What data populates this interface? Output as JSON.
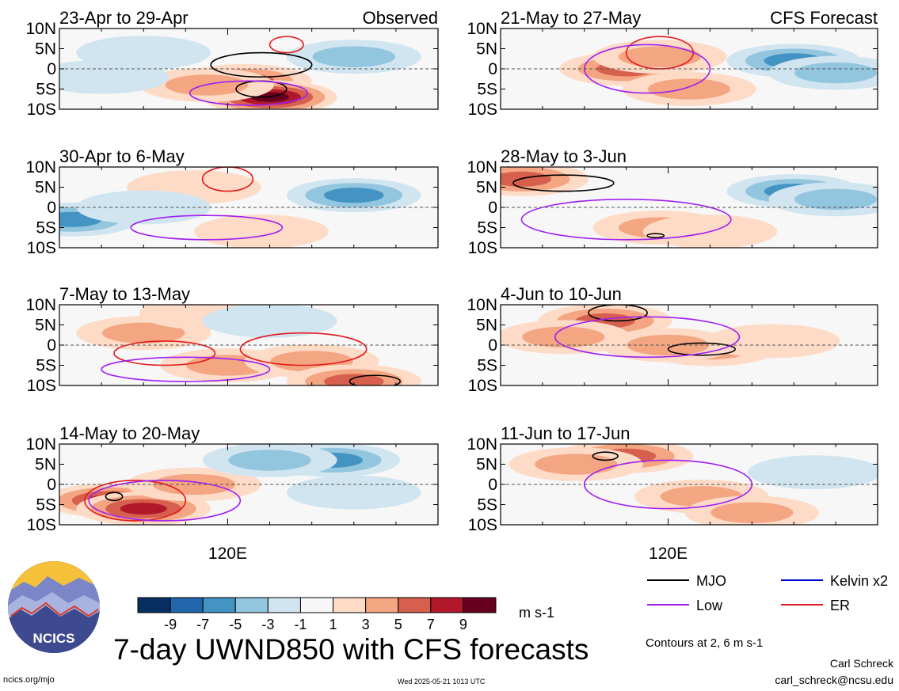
{
  "title": "7-day UWND850 with CFS forecasts",
  "logo_text": "NCICS",
  "footer": {
    "left": "ncics.org/mjo",
    "center": "Wed 2025-05-21 1013 UTC",
    "author": "Carl Schreck",
    "email": "carl_schreck@ncsu.edu"
  },
  "contours_note": "Contours at 2, 6 m s-1",
  "colorbar": {
    "unit": "m s-1",
    "tick_labels": [
      "-9",
      "-7",
      "-5",
      "-3",
      "-1",
      "1",
      "3",
      "5",
      "7",
      "9"
    ],
    "colors": [
      "#053061",
      "#2166ac",
      "#4393c3",
      "#92c5de",
      "#d1e5f0",
      "#f7f7f7",
      "#fddbc7",
      "#f4a582",
      "#d6604d",
      "#b2182b",
      "#67001f"
    ]
  },
  "legend": [
    {
      "label": "MJO",
      "color": "#000000"
    },
    {
      "label": "Kelvin x2",
      "color": "#0000cc"
    },
    {
      "label": "Low",
      "color": "#a020f0"
    },
    {
      "label": "ER",
      "color": "#e41a1c"
    }
  ],
  "colors": {
    "land": "#808080",
    "equator": "#555555"
  },
  "chart_data": {
    "type": "heatmap",
    "variable": "UWND850",
    "lat_tick_labels": [
      "10N",
      "5N",
      "0",
      "5S",
      "10S"
    ],
    "x_tick_label": "120E",
    "panels": [
      {
        "column": "left",
        "period": "23-Apr to 29-Apr",
        "tag": "Observed",
        "blobs": [
          {
            "lon": 124,
            "lat": -3,
            "v": 6
          },
          {
            "lon": 130,
            "lat": -7,
            "v": 9
          },
          {
            "lon": 115,
            "lat": -4,
            "v": 3
          },
          {
            "lon": 150,
            "lat": 3,
            "v": -3
          },
          {
            "lon": 100,
            "lat": 4,
            "v": -2
          },
          {
            "lon": 90,
            "lat": -2,
            "v": -1
          }
        ],
        "contours": [
          {
            "type": "MJO",
            "lon": 128,
            "lat": 1,
            "rx": 12,
            "ry": 3
          },
          {
            "type": "MJO",
            "lon": 128,
            "lat": -5,
            "rx": 6,
            "ry": 2
          },
          {
            "type": "ER",
            "lon": 134,
            "lat": 6,
            "rx": 4,
            "ry": 2
          },
          {
            "type": "Low",
            "lon": 125,
            "lat": -6,
            "rx": 14,
            "ry": 3
          }
        ]
      },
      {
        "column": "left",
        "period": "30-Apr to 6-May",
        "blobs": [
          {
            "lon": 83,
            "lat": -3,
            "v": -5
          },
          {
            "lon": 150,
            "lat": 3,
            "v": -5
          },
          {
            "lon": 112,
            "lat": 5,
            "v": 2
          },
          {
            "lon": 128,
            "lat": -6,
            "v": 2
          },
          {
            "lon": 100,
            "lat": 0,
            "v": -2
          }
        ],
        "contours": [
          {
            "type": "ER",
            "lon": 120,
            "lat": 7,
            "rx": 6,
            "ry": 3
          },
          {
            "type": "Low",
            "lon": 115,
            "lat": -5,
            "rx": 18,
            "ry": 3
          }
        ]
      },
      {
        "column": "left",
        "period": "7-May to 13-May",
        "blobs": [
          {
            "lon": 100,
            "lat": 3,
            "v": 3
          },
          {
            "lon": 120,
            "lat": -5,
            "v": 3
          },
          {
            "lon": 140,
            "lat": -4,
            "v": 3
          },
          {
            "lon": 115,
            "lat": 8,
            "v": 2
          },
          {
            "lon": 150,
            "lat": -9,
            "v": 5
          },
          {
            "lon": 130,
            "lat": 6,
            "v": -1
          }
        ],
        "contours": [
          {
            "type": "ER",
            "lon": 105,
            "lat": -2,
            "rx": 12,
            "ry": 3
          },
          {
            "type": "ER",
            "lon": 138,
            "lat": -1,
            "rx": 15,
            "ry": 4
          },
          {
            "type": "MJO",
            "lon": 155,
            "lat": -9,
            "rx": 6,
            "ry": 1.5
          },
          {
            "type": "Low",
            "lon": 110,
            "lat": -6,
            "rx": 20,
            "ry": 3
          }
        ]
      },
      {
        "column": "left",
        "period": "14-May to 20-May",
        "blobs": [
          {
            "lon": 92,
            "lat": -4,
            "v": 7
          },
          {
            "lon": 100,
            "lat": -6,
            "v": 7
          },
          {
            "lon": 112,
            "lat": 0,
            "v": 3
          },
          {
            "lon": 145,
            "lat": 6,
            "v": -5
          },
          {
            "lon": 130,
            "lat": 6,
            "v": -3
          },
          {
            "lon": 150,
            "lat": -2,
            "v": -2
          }
        ],
        "contours": [
          {
            "type": "ER",
            "lon": 98,
            "lat": -4,
            "rx": 12,
            "ry": 5
          },
          {
            "type": "MJO",
            "lon": 93,
            "lat": -3,
            "rx": 2,
            "ry": 1
          },
          {
            "type": "Low",
            "lon": 105,
            "lat": -4,
            "rx": 18,
            "ry": 5
          }
        ]
      },
      {
        "column": "right",
        "period": "21-May to 27-May",
        "tag": "CFS Forecast",
        "blobs": [
          {
            "lon": 110,
            "lat": 0,
            "v": 5
          },
          {
            "lon": 118,
            "lat": 3,
            "v": 3
          },
          {
            "lon": 125,
            "lat": -5,
            "v": 3
          },
          {
            "lon": 150,
            "lat": 2,
            "v": -5
          },
          {
            "lon": 160,
            "lat": -1,
            "v": -3
          }
        ],
        "contours": [
          {
            "type": "ER",
            "lon": 118,
            "lat": 4,
            "rx": 8,
            "ry": 4
          },
          {
            "type": "Low",
            "lon": 115,
            "lat": 0,
            "rx": 15,
            "ry": 6
          }
        ]
      },
      {
        "column": "right",
        "period": "28-May to 3-Jun",
        "blobs": [
          {
            "lon": 85,
            "lat": 7,
            "v": 5
          },
          {
            "lon": 118,
            "lat": -5,
            "v": 3
          },
          {
            "lon": 150,
            "lat": 4,
            "v": -5
          },
          {
            "lon": 160,
            "lat": 2,
            "v": -3
          },
          {
            "lon": 130,
            "lat": -6,
            "v": 2
          }
        ],
        "contours": [
          {
            "type": "MJO",
            "lon": 95,
            "lat": 6,
            "rx": 12,
            "ry": 2
          },
          {
            "type": "MJO",
            "lon": 117,
            "lat": -7,
            "rx": 2,
            "ry": 0.5
          },
          {
            "type": "Low",
            "lon": 110,
            "lat": -3,
            "rx": 25,
            "ry": 5
          }
        ]
      },
      {
        "column": "right",
        "period": "4-Jun to 10-Jun",
        "blobs": [
          {
            "lon": 105,
            "lat": 6,
            "v": 5
          },
          {
            "lon": 130,
            "lat": -1,
            "v": 3
          },
          {
            "lon": 120,
            "lat": 0,
            "v": 3
          },
          {
            "lon": 95,
            "lat": 2,
            "v": 3
          },
          {
            "lon": 145,
            "lat": 1,
            "v": 2
          }
        ],
        "contours": [
          {
            "type": "MJO",
            "lon": 128,
            "lat": -1,
            "rx": 8,
            "ry": 1.5
          },
          {
            "type": "MJO",
            "lon": 108,
            "lat": 8,
            "rx": 7,
            "ry": 2
          },
          {
            "type": "Low",
            "lon": 115,
            "lat": 2,
            "rx": 22,
            "ry": 5
          }
        ]
      },
      {
        "column": "right",
        "period": "11-Jun to 17-Jun",
        "blobs": [
          {
            "lon": 110,
            "lat": 7,
            "v": 5
          },
          {
            "lon": 128,
            "lat": -3,
            "v": 3
          },
          {
            "lon": 140,
            "lat": -7,
            "v": 3
          },
          {
            "lon": 98,
            "lat": 5,
            "v": 3
          },
          {
            "lon": 155,
            "lat": 3,
            "v": -2
          }
        ],
        "contours": [
          {
            "type": "MJO",
            "lon": 105,
            "lat": 7,
            "rx": 3,
            "ry": 1
          },
          {
            "type": "Low",
            "lon": 120,
            "lat": 0,
            "rx": 20,
            "ry": 6
          }
        ]
      }
    ]
  }
}
